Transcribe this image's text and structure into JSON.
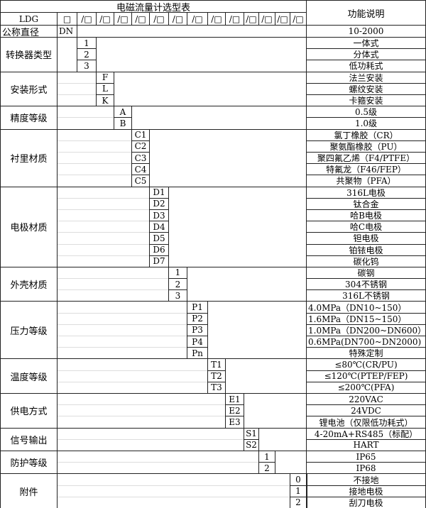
{
  "title": "电磁流量计选型表",
  "function_header": "功能说明",
  "model_prefix": "LDG",
  "header_box": "□",
  "header_slot": "/□",
  "header_slot_count": 13,
  "nominal": {
    "label": "公称直径",
    "code": "DN",
    "desc": "10-2000"
  },
  "sections": [
    {
      "label": "转换器类型",
      "items": [
        {
          "code": "1",
          "desc": "一体式"
        },
        {
          "code": "2",
          "desc": "分体式"
        },
        {
          "code": "3",
          "desc": "低功耗式"
        }
      ]
    },
    {
      "label": "安装形式",
      "items": [
        {
          "code": "F",
          "desc": "法兰安装"
        },
        {
          "code": "L",
          "desc": "螺纹安装"
        },
        {
          "code": "K",
          "desc": "卡箍安装"
        }
      ]
    },
    {
      "label": "精度等级",
      "items": [
        {
          "code": "A",
          "desc": "0.5级"
        },
        {
          "code": "B",
          "desc": "1.0级"
        }
      ]
    },
    {
      "label": "衬里材质",
      "items": [
        {
          "code": "C1",
          "desc": "氯丁橡胶（CR）"
        },
        {
          "code": "C2",
          "desc": "聚氨酯橡胶（PU）"
        },
        {
          "code": "C3",
          "desc": "聚四氟乙烯（F4/PTFE）"
        },
        {
          "code": "C4",
          "desc": "特氟龙（F46/FEP）"
        },
        {
          "code": "C5",
          "desc": "共聚物（PFA）"
        }
      ]
    },
    {
      "label": "电极材质",
      "items": [
        {
          "code": "D1",
          "desc": "316L电极"
        },
        {
          "code": "D2",
          "desc": "钛合金"
        },
        {
          "code": "D3",
          "desc": "哈B电极"
        },
        {
          "code": "D4",
          "desc": "哈C电极"
        },
        {
          "code": "D5",
          "desc": "钽电极"
        },
        {
          "code": "D6",
          "desc": "铂铱电极"
        },
        {
          "code": "D7",
          "desc": "碳化钨"
        }
      ]
    },
    {
      "label": "外壳材质",
      "items": [
        {
          "code": "1",
          "desc": "碳钢"
        },
        {
          "code": "2",
          "desc": "304不锈钢"
        },
        {
          "code": "3",
          "desc": "316L不锈钢"
        }
      ]
    },
    {
      "label": "压力等级",
      "items": [
        {
          "code": "P1",
          "desc": "4.0MPa（DN10~150）",
          "align": "left"
        },
        {
          "code": "P2",
          "desc": "1.6MPa（DN15~150）",
          "align": "left"
        },
        {
          "code": "P3",
          "desc": "1.0MPa（DN200~DN600）",
          "align": "left"
        },
        {
          "code": "P4",
          "desc": "0.6MPa(DN700~DN2000)",
          "align": "left"
        },
        {
          "code": "Pn",
          "desc": "特殊定制"
        }
      ]
    },
    {
      "label": "温度等级",
      "items": [
        {
          "code": "T1",
          "desc": "≤80℃(CR/PU)"
        },
        {
          "code": "T2",
          "desc": "≤120℃(PTEP/FEP)"
        },
        {
          "code": "T3",
          "desc": "≤200℃(PFA)"
        }
      ]
    },
    {
      "label": "供电方式",
      "items": [
        {
          "code": "E1",
          "desc": "220VAC"
        },
        {
          "code": "E2",
          "desc": "24VDC"
        },
        {
          "code": "E3",
          "desc": "锂电池（仅限低功耗式）"
        }
      ]
    },
    {
      "label": "信号输出",
      "items": [
        {
          "code": "S1",
          "desc": "4-20mA+RS485（标配）"
        },
        {
          "code": "S2",
          "desc": "HART"
        }
      ]
    },
    {
      "label": "防护等级",
      "items": [
        {
          "code": "1",
          "desc": "IP65"
        },
        {
          "code": "2",
          "desc": "IP68"
        }
      ]
    },
    {
      "label": "附件",
      "items": [
        {
          "code": "0",
          "desc": "不接地"
        },
        {
          "code": "1",
          "desc": "接地电极"
        },
        {
          "code": "2",
          "desc": "刮刀电极"
        }
      ]
    }
  ]
}
